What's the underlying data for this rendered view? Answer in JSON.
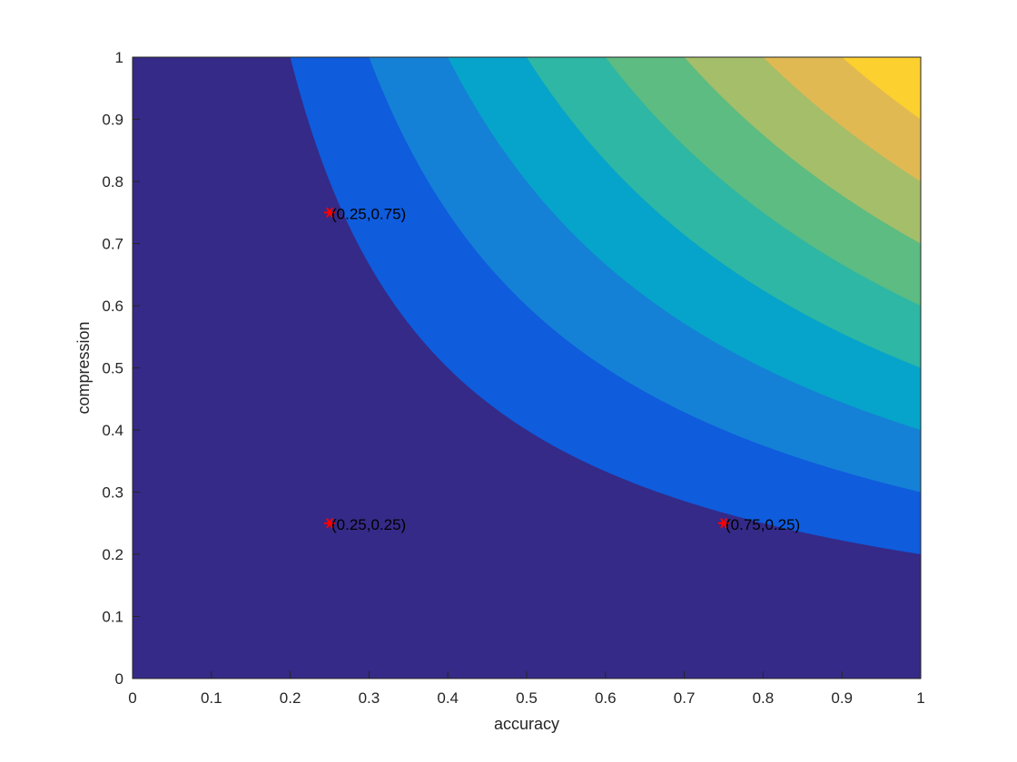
{
  "chart_data": {
    "type": "contourf",
    "xlabel": "accuracy",
    "ylabel": "compression",
    "xlim": [
      0,
      1
    ],
    "ylim": [
      0,
      1
    ],
    "x_ticks": [
      "0",
      "0.1",
      "0.2",
      "0.3",
      "0.4",
      "0.5",
      "0.6",
      "0.7",
      "0.8",
      "0.9",
      "1"
    ],
    "y_ticks": [
      "0",
      "0.1",
      "0.2",
      "0.3",
      "0.4",
      "0.5",
      "0.6",
      "0.7",
      "0.8",
      "0.9",
      "1"
    ],
    "surface": "z = x * y",
    "contour_levels": [
      0.2,
      0.3,
      0.4,
      0.5,
      0.6,
      0.7,
      0.8,
      0.9
    ],
    "level_colors": [
      "#352a87",
      "#0f5cdd",
      "#1481d6",
      "#06a4ca",
      "#2eb7a4",
      "#5cbc82",
      "#a5be6a",
      "#e1b952",
      "#fcd02e"
    ],
    "grid": false,
    "points": [
      {
        "x": 0.25,
        "y": 0.75,
        "label": "(0.25,0.75)"
      },
      {
        "x": 0.25,
        "y": 0.25,
        "label": "(0.25,0.25)"
      },
      {
        "x": 0.75,
        "y": 0.25,
        "label": "(0.75,0.25)"
      }
    ],
    "marker": "asterisk",
    "marker_color": "#ff0000"
  }
}
